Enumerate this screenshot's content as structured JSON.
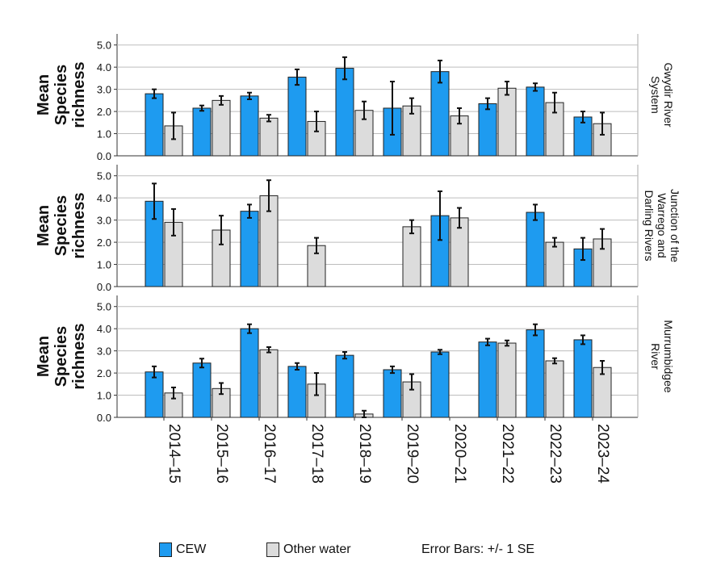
{
  "chart_data": {
    "type": "bar",
    "error_bars_note": "Error Bars: +/- 1 SE",
    "categories": [
      "2014–15",
      "2015–16",
      "2016–17",
      "2017–18",
      "2018–19",
      "2019–20",
      "2020–21",
      "2021–22",
      "2022–23",
      "2023–24"
    ],
    "series_meta": [
      {
        "name": "CEW",
        "color": "#1e9bf0"
      },
      {
        "name": "Other water",
        "color": "#dcdcdc"
      }
    ],
    "ylabel": "Mean Species richness",
    "ylabel_lines": [
      "Mean",
      "Species",
      "richness"
    ],
    "yticks": [
      "0.0",
      "1.0",
      "2.0",
      "3.0",
      "4.0",
      "5.0"
    ],
    "ylim": [
      0,
      5.5
    ],
    "grid": true,
    "legend_position": "bottom",
    "panels": [
      {
        "label": "Gwydir River System",
        "label_lines": [
          "Gwydir River",
          "System"
        ],
        "series": [
          {
            "name": "CEW",
            "values": [
              2.8,
              2.15,
              2.7,
              3.55,
              3.95,
              2.15,
              3.8,
              2.35,
              3.1,
              1.75
            ],
            "se": [
              0.2,
              0.12,
              0.15,
              0.35,
              0.5,
              1.2,
              0.5,
              0.25,
              0.17,
              0.25
            ]
          },
          {
            "name": "Other water",
            "values": [
              1.35,
              2.5,
              1.7,
              1.55,
              2.05,
              2.25,
              1.8,
              3.05,
              2.4,
              1.45
            ],
            "se": [
              0.6,
              0.2,
              0.15,
              0.45,
              0.4,
              0.35,
              0.35,
              0.3,
              0.45,
              0.5
            ]
          }
        ]
      },
      {
        "label": "Junction of the Warrego and Darling Rivers",
        "label_lines": [
          "Junction of the",
          "Warrego and",
          "Darling Rivers"
        ],
        "series": [
          {
            "name": "CEW",
            "values": [
              3.85,
              null,
              3.4,
              null,
              null,
              null,
              3.2,
              null,
              3.35,
              1.7
            ],
            "se": [
              0.8,
              null,
              0.3,
              null,
              null,
              null,
              1.1,
              null,
              0.35,
              0.5
            ]
          },
          {
            "name": "Other water",
            "values": [
              2.9,
              2.55,
              4.1,
              1.85,
              null,
              2.7,
              3.1,
              null,
              2.0,
              2.15
            ],
            "se": [
              0.6,
              0.65,
              0.7,
              0.35,
              null,
              0.3,
              0.45,
              null,
              0.2,
              0.45
            ]
          }
        ]
      },
      {
        "label": "Murrumbidgee River",
        "label_lines": [
          "Murrumbidgee",
          "River"
        ],
        "series": [
          {
            "name": "CEW",
            "values": [
              2.05,
              2.45,
              4.0,
              2.3,
              2.8,
              2.15,
              2.95,
              3.4,
              3.95,
              3.5
            ],
            "se": [
              0.25,
              0.2,
              0.2,
              0.15,
              0.15,
              0.15,
              0.1,
              0.15,
              0.25,
              0.2
            ]
          },
          {
            "name": "Other water",
            "values": [
              1.1,
              1.3,
              3.05,
              1.5,
              0.15,
              1.6,
              null,
              3.35,
              2.55,
              2.25
            ],
            "se": [
              0.25,
              0.25,
              0.12,
              0.5,
              0.15,
              0.35,
              null,
              0.12,
              0.12,
              0.3
            ]
          }
        ]
      }
    ]
  }
}
